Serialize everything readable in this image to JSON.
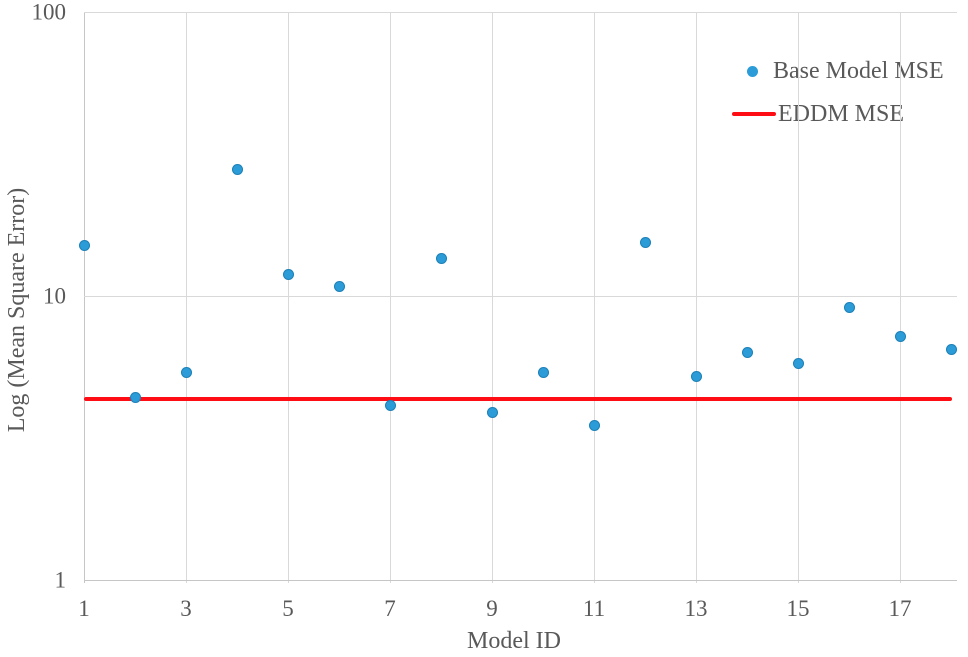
{
  "chart_data": {
    "type": "scatter",
    "title": "",
    "xlabel": "Model ID",
    "ylabel": "Log (Mean Square Error)",
    "x_axis": {
      "min": 1,
      "max": 18.1,
      "ticks": [
        1,
        3,
        5,
        7,
        9,
        11,
        13,
        15,
        17
      ]
    },
    "y_axis": {
      "scale": "log",
      "min": 1,
      "max": 100,
      "ticks": [
        1,
        10,
        100
      ]
    },
    "grid": {
      "on": true,
      "color": "#d9d9d9"
    },
    "series": [
      {
        "name": "Base Model MSE",
        "type": "scatter",
        "color": "#2b9cd8",
        "x": [
          1,
          2,
          3,
          4,
          5,
          6,
          7,
          8,
          9,
          10,
          11,
          12,
          13,
          14,
          15,
          16,
          17,
          18
        ],
        "values": [
          15.1,
          4.4,
          5.4,
          28.0,
          11.9,
          10.8,
          4.1,
          13.6,
          3.9,
          5.4,
          3.5,
          15.4,
          5.2,
          6.3,
          5.8,
          9.1,
          7.2,
          6.5
        ]
      },
      {
        "name": "EDDM MSE",
        "type": "hline",
        "color": "#fe0d14",
        "value": 4.35
      }
    ],
    "legend": {
      "position": "top-right",
      "entries": [
        {
          "label": "Base Model MSE",
          "marker": "dot",
          "color": "#2b9cd8"
        },
        {
          "label": "EDDM MSE",
          "marker": "line",
          "color": "#fe0d14"
        }
      ]
    },
    "text_color": "#595959"
  }
}
